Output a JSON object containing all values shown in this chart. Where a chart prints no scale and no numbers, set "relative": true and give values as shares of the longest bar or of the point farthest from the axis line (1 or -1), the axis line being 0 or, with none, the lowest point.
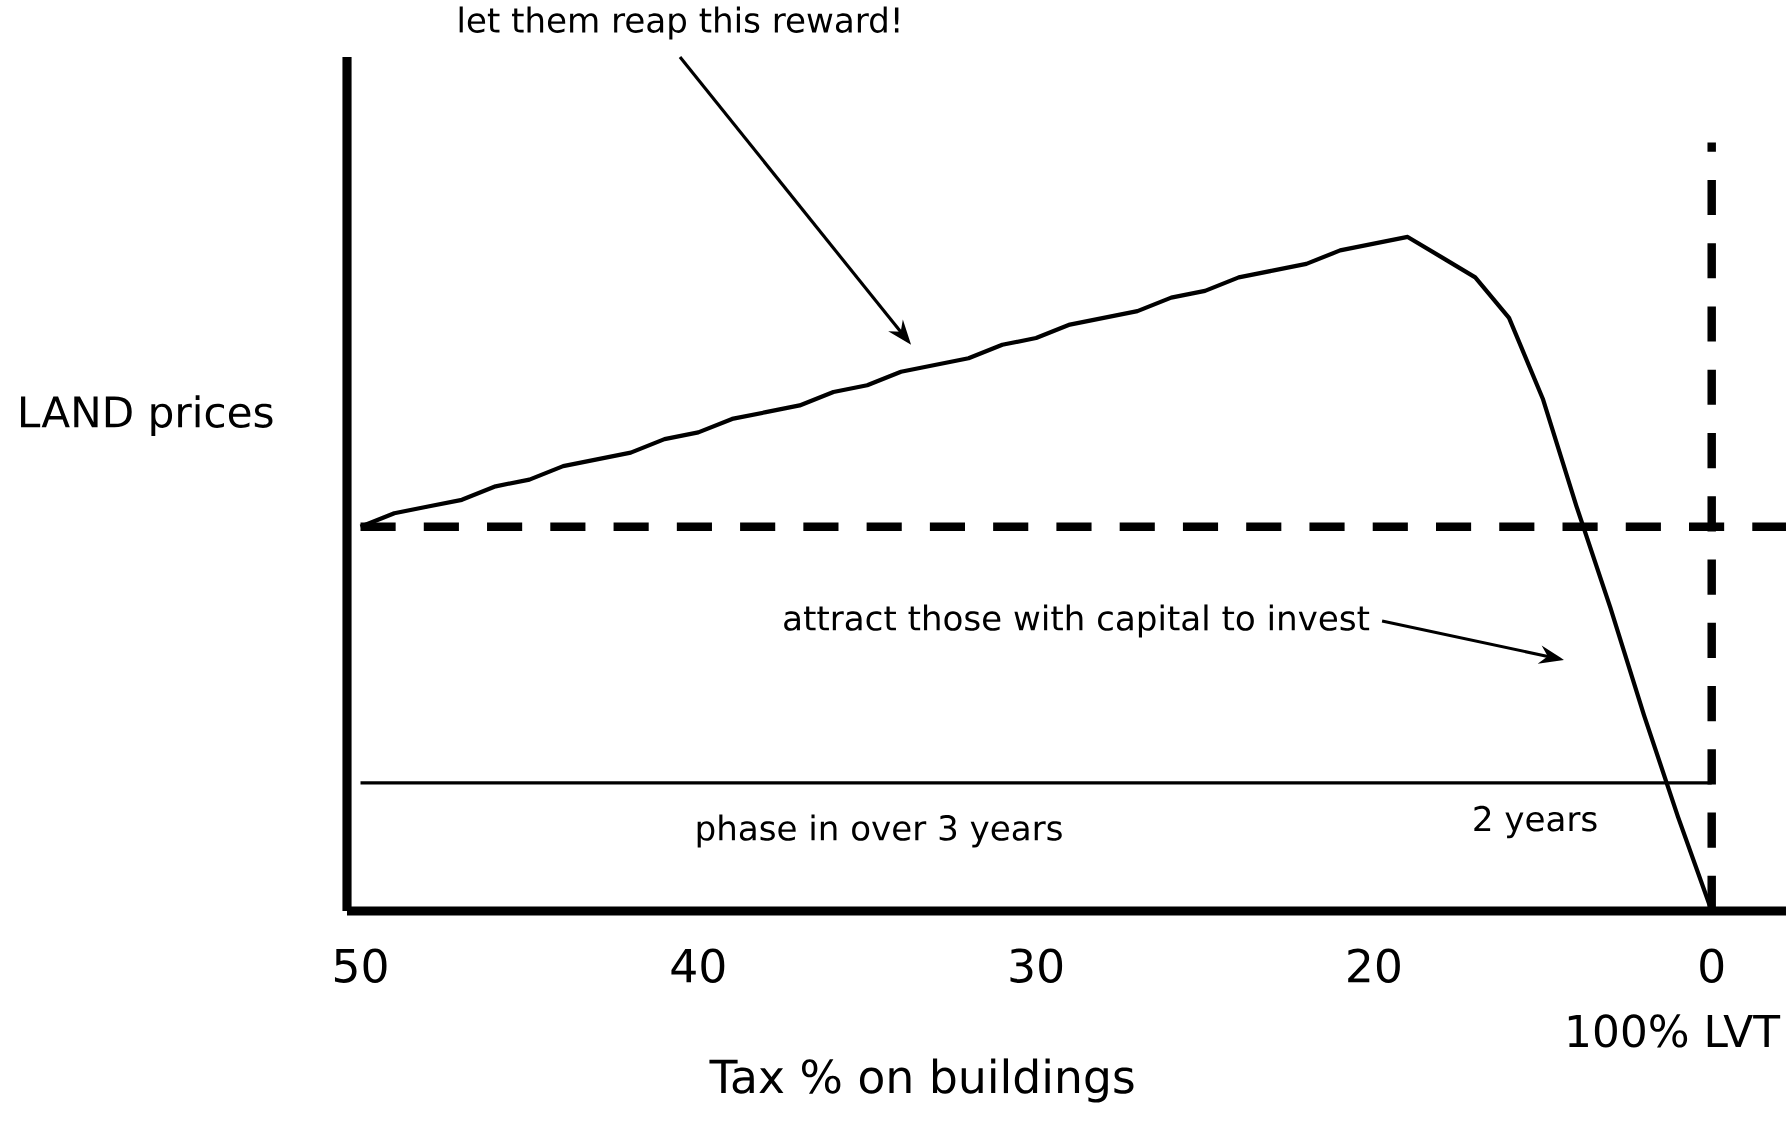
{
  "chart_data": {
    "type": "line",
    "relative": true,
    "xlabel": "Tax % on buildings",
    "ylabel": "LAND prices",
    "categories": [
      "50",
      null,
      null,
      null,
      null,
      null,
      null,
      null,
      null,
      null,
      "40",
      null,
      null,
      null,
      null,
      null,
      null,
      null,
      null,
      null,
      "30",
      null,
      null,
      null,
      null,
      null,
      null,
      null,
      null,
      null,
      "20",
      null,
      null,
      null,
      null,
      null,
      null,
      null,
      null,
      null,
      "0",
      null,
      null
    ],
    "series": [
      {
        "color": "#000000",
        "values": [
          0.57,
          0.59,
          0.6,
          0.61,
          0.63,
          0.64,
          0.66,
          0.67,
          0.68,
          0.7,
          0.71,
          0.73,
          0.74,
          0.75,
          0.77,
          0.78,
          0.8,
          0.81,
          0.82,
          0.84,
          0.85,
          0.87,
          0.88,
          0.89,
          0.91,
          0.92,
          0.94,
          0.95,
          0.96,
          0.98,
          0.99,
          1,
          0.97,
          0.94,
          0.88,
          0.76,
          0.6,
          0.45,
          0.29,
          0.14,
          0,
          null,
          null
        ]
      },
      {
        "color": "#000000",
        "values": [
          0.19,
          0.19,
          0.19,
          0.19,
          0.19,
          0.19,
          0.19,
          0.19,
          0.19,
          0.19,
          0.19,
          0.19,
          0.19,
          0.19,
          0.19,
          0.19,
          0.19,
          0.19,
          0.19,
          0.19,
          0.19,
          0.19,
          0.19,
          0.19,
          0.19,
          0.19,
          0.19,
          0.19,
          0.19,
          0.19,
          0.19,
          0.19,
          0.19,
          0.19,
          0.19,
          0.19,
          0.19,
          0.19,
          0.19,
          0.19,
          0.19,
          null,
          null
        ]
      }
    ],
    "ref_lines": [
      {
        "axis": "y",
        "value": 0.57,
        "line_style": "dashed",
        "color": "#000000"
      },
      {
        "axis": "x",
        "value": "0",
        "line_style": "dashed",
        "color": "#000000"
      }
    ],
    "annotations": [
      "let them reap this reward!",
      "attract those with capital to invest",
      "phase in over 3 years",
      "2 years",
      "100% LVT"
    ],
    "marker": "none",
    "line_style": "solid"
  }
}
